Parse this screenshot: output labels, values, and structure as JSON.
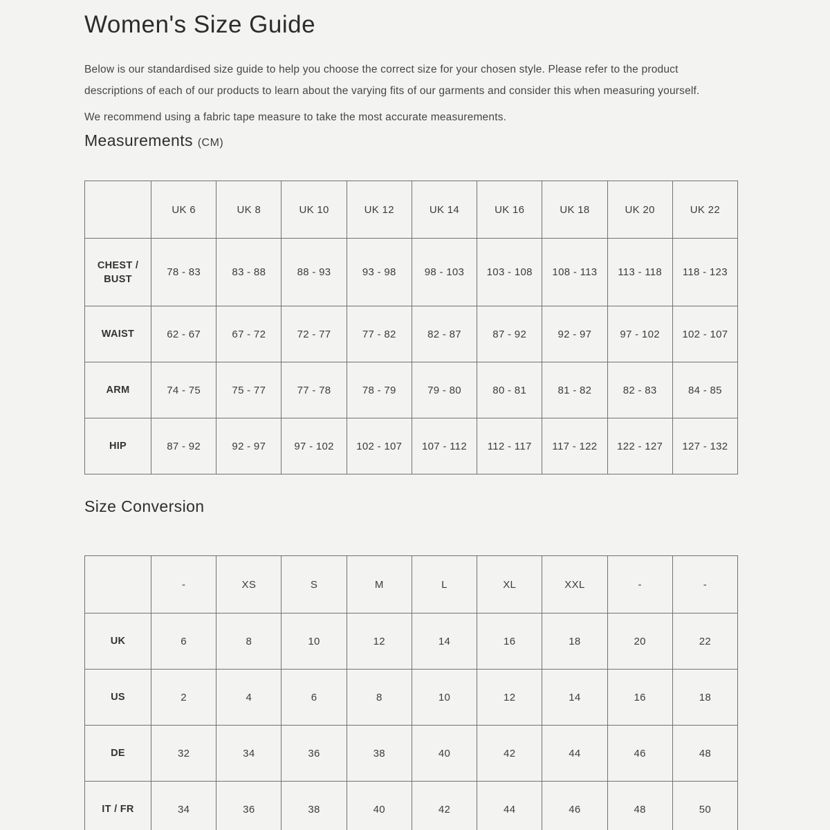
{
  "page": {
    "title": "Women's Size Guide",
    "intro_paragraph": "Below is our standardised size guide to help you choose the correct size for your chosen style. Please refer to the product descriptions of each of our products to learn about the varying fits of our garments and consider this when measuring yourself.",
    "recommendation_paragraph": "We recommend using a fabric tape measure to take the most accurate measurements.",
    "colors": {
      "background": "#f3f3f1",
      "text": "#3f3f3f",
      "heading": "#2c2c2c",
      "table_border": "#717171"
    }
  },
  "measurements": {
    "heading": "Measurements",
    "heading_unit": "(CM)",
    "columns": [
      "",
      "UK 6",
      "UK 8",
      "UK 10",
      "UK 12",
      "UK 14",
      "UK 16",
      "UK 18",
      "UK 20",
      "UK 22"
    ],
    "rows": [
      {
        "label": "CHEST / BUST",
        "values": [
          "78 - 83",
          "83 - 88",
          "88 - 93",
          "93 - 98",
          "98 - 103",
          "103 - 108",
          "108 - 113",
          "113 - 118",
          "118 - 123"
        ]
      },
      {
        "label": "WAIST",
        "values": [
          "62 - 67",
          "67 - 72",
          "72 - 77",
          "77 - 82",
          "82 - 87",
          "87 - 92",
          "92 - 97",
          "97 - 102",
          "102 - 107"
        ]
      },
      {
        "label": "ARM",
        "values": [
          "74 - 75",
          "75 - 77",
          "77 - 78",
          "78 - 79",
          "79 - 80",
          "80 - 81",
          "81 - 82",
          "82 - 83",
          "84 - 85"
        ]
      },
      {
        "label": "HIP",
        "values": [
          "87 - 92",
          "92 - 97",
          "97 - 102",
          "102 - 107",
          "107 - 112",
          "112 - 117",
          "117 - 122",
          "122 - 127",
          "127 - 132"
        ]
      }
    ]
  },
  "conversion": {
    "heading": "Size Conversion",
    "columns": [
      "",
      "-",
      "XS",
      "S",
      "M",
      "L",
      "XL",
      "XXL",
      "-",
      "-"
    ],
    "rows": [
      {
        "label": "UK",
        "values": [
          "6",
          "8",
          "10",
          "12",
          "14",
          "16",
          "18",
          "20",
          "22"
        ]
      },
      {
        "label": "US",
        "values": [
          "2",
          "4",
          "6",
          "8",
          "10",
          "12",
          "14",
          "16",
          "18"
        ]
      },
      {
        "label": "DE",
        "values": [
          "32",
          "34",
          "36",
          "38",
          "40",
          "42",
          "44",
          "46",
          "48"
        ]
      },
      {
        "label": "IT / FR",
        "values": [
          "34",
          "36",
          "38",
          "40",
          "42",
          "44",
          "46",
          "48",
          "50"
        ]
      }
    ]
  }
}
